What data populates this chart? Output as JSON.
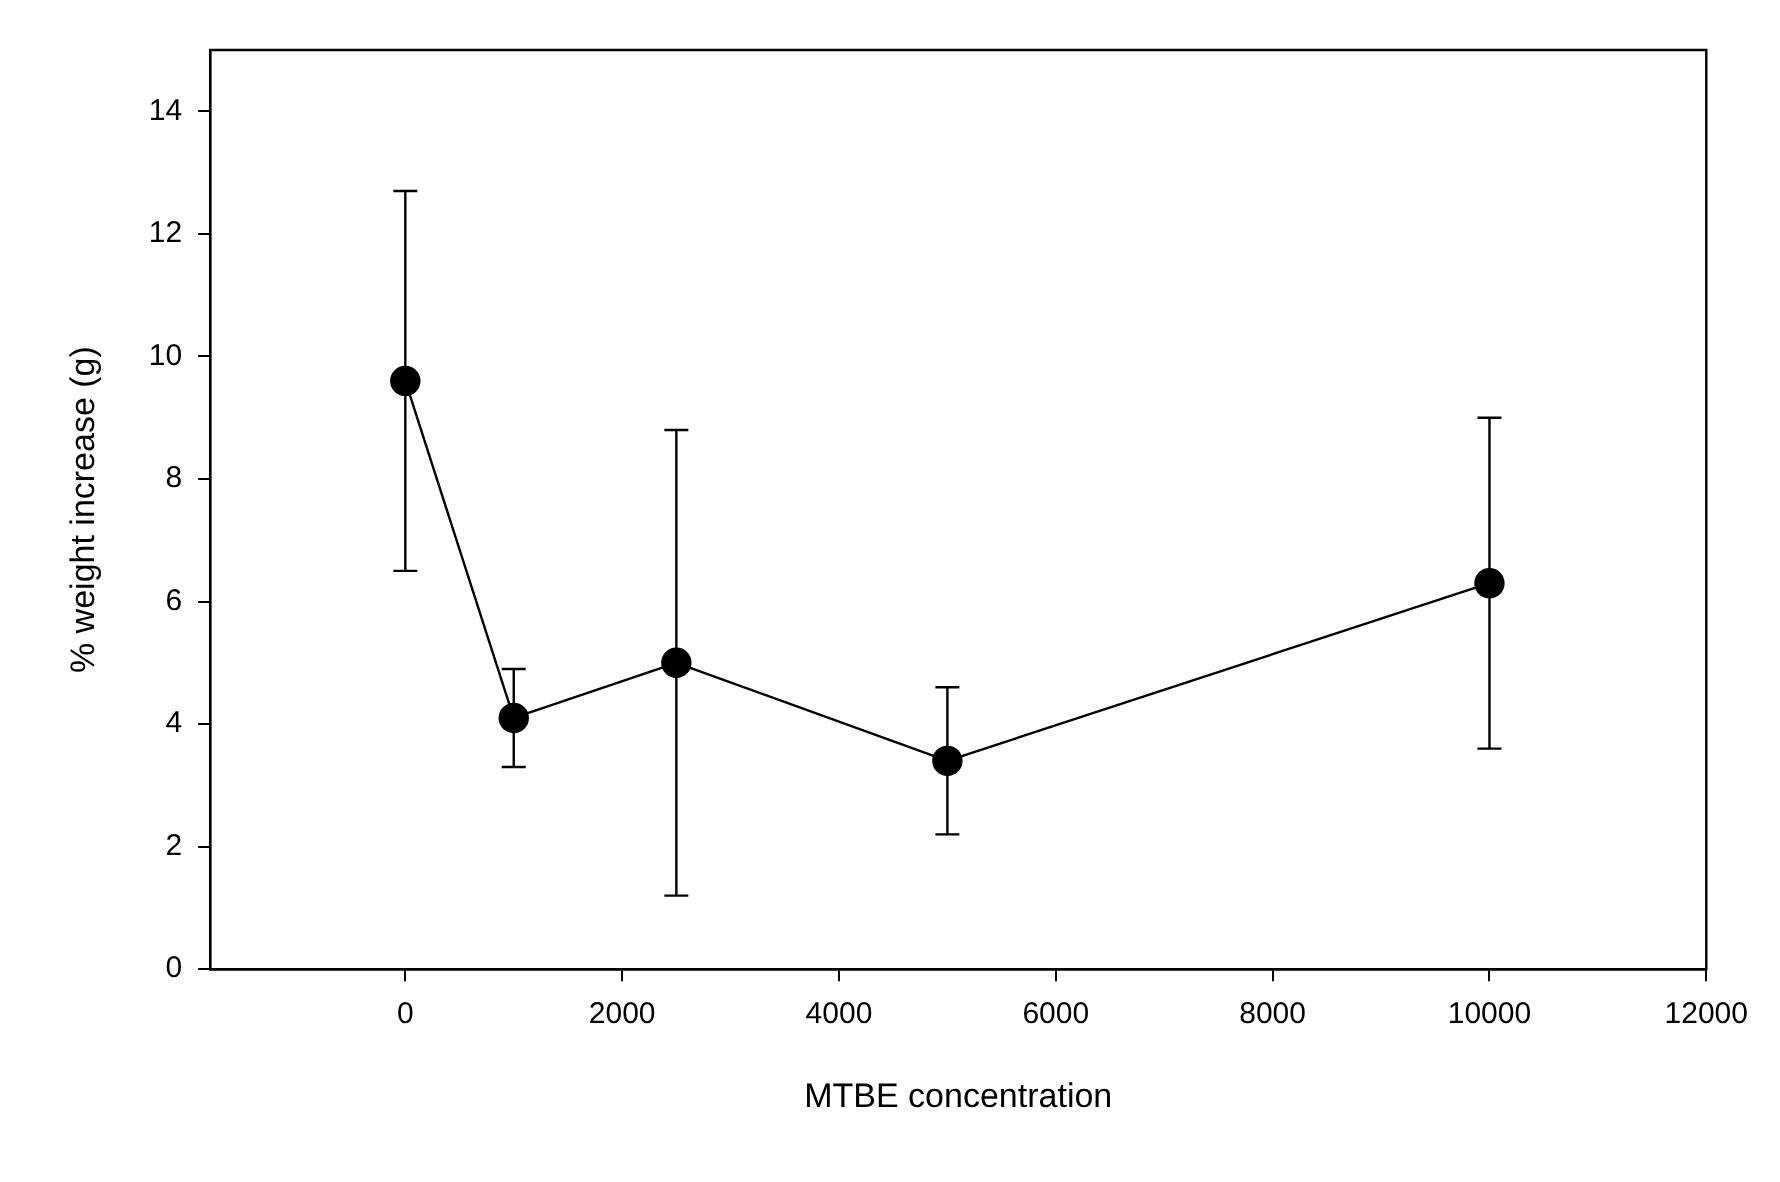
{
  "chart_data": {
    "type": "line",
    "xlabel": "MTBE concentration",
    "ylabel": "% weight increase (g)",
    "x": [
      0,
      1000,
      2500,
      5000,
      10000
    ],
    "series": [
      {
        "color": "#000000",
        "values": [
          9.6,
          4.1,
          5.0,
          3.4,
          6.3
        ],
        "errors": [
          [
            6.5,
            12.7
          ],
          [
            3.3,
            4.9
          ],
          [
            1.2,
            8.8
          ],
          [
            2.2,
            4.6
          ],
          [
            3.6,
            9.0
          ]
        ]
      }
    ],
    "xlim": [
      -1800,
      12000
    ],
    "xticks": [
      0,
      2000,
      4000,
      6000,
      8000,
      10000,
      12000
    ],
    "ylim": [
      0,
      15
    ],
    "yticks": [
      0,
      2,
      4,
      6,
      8,
      10,
      12,
      14
    ],
    "marker": "circle",
    "line_style": "solid",
    "grid": false,
    "legend": false
  }
}
